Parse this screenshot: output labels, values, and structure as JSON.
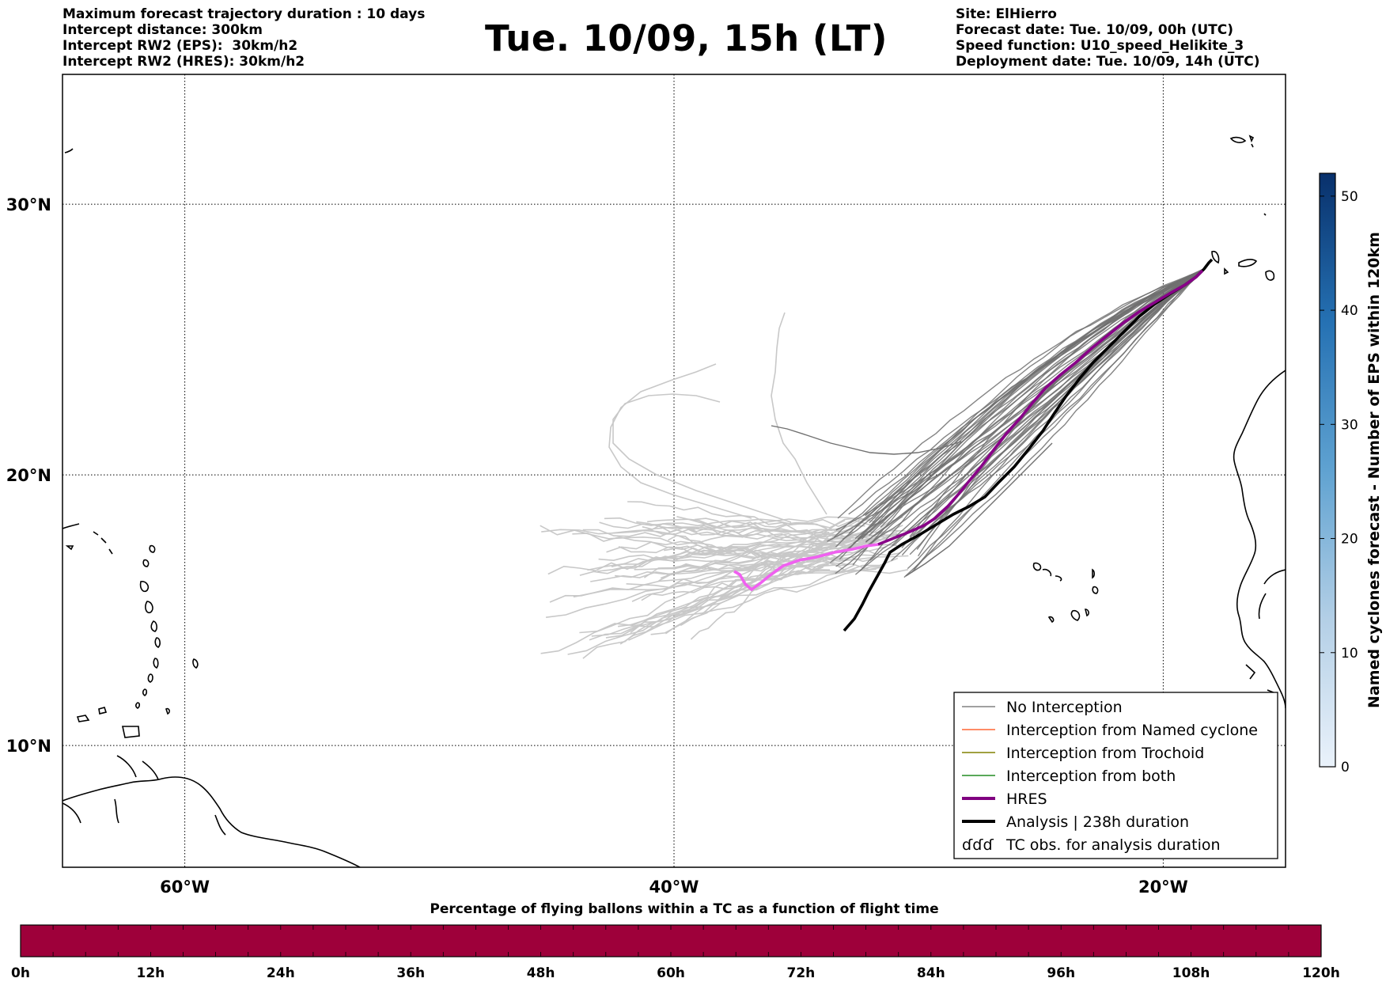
{
  "header": {
    "title": "Tue. 10/09, 15h (LT)",
    "left_info": [
      "Maximum forecast trajectory duration : 10 days",
      "Intercept distance: 300km",
      "Intercept RW2 (EPS):  30km/h2",
      "Intercept RW2 (HRES): 30km/h2"
    ],
    "right_info": [
      "Site: ElHierro",
      "Forecast date: Tue. 10/09, 00h (UTC)",
      "Speed function: U10_speed_Helikite_3",
      "Deployment date: Tue. 10/09, 14h (UTC)"
    ]
  },
  "map": {
    "lon_range": [
      -65,
      -15
    ],
    "lat_range": [
      5.5,
      34.8
    ],
    "lon_ticks": [
      {
        "value": -60,
        "label": "60°W"
      },
      {
        "value": -40,
        "label": "40°W"
      },
      {
        "value": -20,
        "label": "20°W"
      }
    ],
    "lat_ticks": [
      {
        "value": 30,
        "label": "30°N"
      },
      {
        "value": 20,
        "label": "20°N"
      },
      {
        "value": 10,
        "label": "10°N"
      }
    ],
    "grid": true
  },
  "legend": {
    "placement": "lower-right",
    "items": [
      {
        "label": "No Interception",
        "color": "#808080",
        "style": "thin"
      },
      {
        "label": "Interception from Named cyclone",
        "color": "#ff6633",
        "style": "thin"
      },
      {
        "label": "Interception from Trochoid",
        "color": "#808000",
        "style": "thin"
      },
      {
        "label": "Interception from both",
        "color": "#228b22",
        "style": "thin"
      },
      {
        "label": "HRES",
        "color": "#800080",
        "style": "thick"
      },
      {
        "label": "Analysis | 238h duration",
        "color": "#000000",
        "style": "thick"
      },
      {
        "label": "TC obs. for analysis duration",
        "color": "#000000",
        "style": "symbol"
      }
    ]
  },
  "colorbar_right": {
    "label": "Named cyclones forecast - Number of EPS within 120km",
    "range": [
      0,
      52
    ],
    "ticks": [
      "0",
      "10",
      "20",
      "30",
      "40",
      "50"
    ],
    "color_low": "#e8f1fb",
    "color_high": "#08306b"
  },
  "colorbar_bottom": {
    "title": "Percentage of flying ballons within a TC as a function of flight time",
    "ticks": [
      "0h",
      "12h",
      "24h",
      "36h",
      "48h",
      "60h",
      "72h",
      "84h",
      "96h",
      "108h",
      "120h"
    ],
    "fill_color": "#9e003a"
  }
}
